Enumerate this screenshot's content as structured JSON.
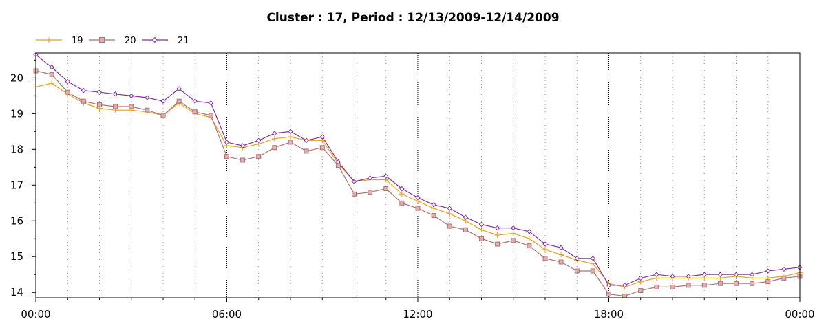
{
  "chart_data": {
    "type": "line",
    "title": "Cluster : 17, Period : 12/13/2009-12/14/2009",
    "xlabel": "",
    "ylabel": "",
    "x_unit": "hours since 12/13/2009 00:00",
    "xlim": [
      0,
      24
    ],
    "ylim": [
      13.85,
      20.7
    ],
    "x_tick_labels": [
      "00:00",
      "06:00",
      "12:00",
      "18:00",
      "00:00"
    ],
    "y_tick_labels": [
      "14",
      "15",
      "16",
      "17",
      "18",
      "19",
      "20"
    ],
    "grid": true,
    "legend_position": "top-left",
    "x": [
      0,
      0.5,
      1,
      1.5,
      2,
      2.5,
      3,
      3.5,
      4,
      4.5,
      5,
      5.5,
      6,
      6.5,
      7,
      7.5,
      8,
      8.5,
      9,
      9.5,
      10,
      10.5,
      11,
      11.5,
      12,
      12.5,
      13,
      13.5,
      14,
      14.5,
      15,
      15.5,
      16,
      16.5,
      17,
      17.5,
      18,
      18.5,
      19,
      19.5,
      20,
      20.5,
      21,
      21.5,
      22,
      22.5,
      23,
      23.5,
      24
    ],
    "series": [
      {
        "name": "19",
        "color": "#e8a020",
        "marker": "plus",
        "values": [
          19.75,
          19.85,
          19.55,
          19.3,
          19.15,
          19.1,
          19.1,
          19.05,
          18.95,
          19.3,
          19.0,
          18.9,
          18.1,
          18.05,
          18.15,
          18.3,
          18.35,
          18.25,
          18.25,
          17.6,
          17.1,
          17.15,
          17.15,
          16.75,
          16.55,
          16.35,
          16.2,
          16.0,
          15.75,
          15.6,
          15.65,
          15.5,
          15.2,
          15.05,
          14.9,
          14.8,
          14.25,
          14.15,
          14.3,
          14.4,
          14.4,
          14.4,
          14.4,
          14.4,
          14.45,
          14.4,
          14.4,
          14.45,
          14.55
        ]
      },
      {
        "name": "20",
        "color": "#b07070",
        "marker": "square",
        "values": [
          20.2,
          20.1,
          19.6,
          19.35,
          19.25,
          19.2,
          19.2,
          19.1,
          18.95,
          19.35,
          19.05,
          18.95,
          17.8,
          17.7,
          17.8,
          18.05,
          18.2,
          17.95,
          18.05,
          17.55,
          16.75,
          16.8,
          16.9,
          16.5,
          16.35,
          16.15,
          15.85,
          15.75,
          15.5,
          15.35,
          15.45,
          15.3,
          14.95,
          14.85,
          14.6,
          14.6,
          13.95,
          13.9,
          14.05,
          14.15,
          14.15,
          14.2,
          14.2,
          14.25,
          14.25,
          14.25,
          14.3,
          14.4,
          14.45
        ]
      },
      {
        "name": "21",
        "color": "#8030a0",
        "marker": "diamond",
        "values": [
          20.65,
          20.3,
          19.9,
          19.65,
          19.6,
          19.55,
          19.5,
          19.45,
          19.35,
          19.7,
          19.35,
          19.3,
          18.2,
          18.1,
          18.25,
          18.45,
          18.5,
          18.25,
          18.35,
          17.65,
          17.1,
          17.2,
          17.25,
          16.9,
          16.65,
          16.45,
          16.35,
          16.1,
          15.9,
          15.8,
          15.8,
          15.7,
          15.35,
          15.25,
          14.95,
          14.95,
          14.2,
          14.2,
          14.4,
          14.5,
          14.45,
          14.45,
          14.5,
          14.5,
          14.5,
          14.5,
          14.6,
          14.65,
          14.7
        ]
      }
    ]
  }
}
